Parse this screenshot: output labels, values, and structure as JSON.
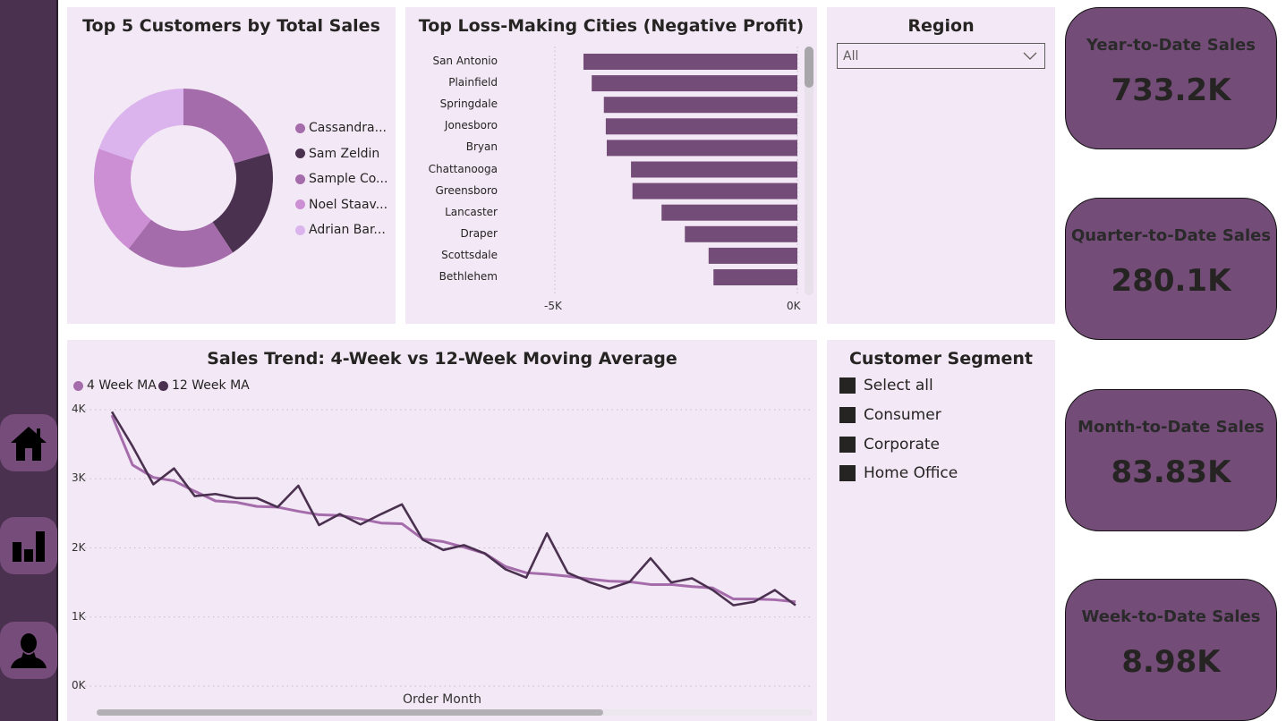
{
  "colors": {
    "sidebar": "#4b3150",
    "nav_button": "#764c7a",
    "panel_bg": "#f3e8f5",
    "kpi_bg": "#744c78",
    "bar": "#744c78",
    "line_4wk": "#a56cab",
    "line_12wk": "#4b3150"
  },
  "sidebar": {
    "items": [
      {
        "icon": "home-icon"
      },
      {
        "icon": "bar-chart-icon"
      },
      {
        "icon": "user-icon"
      }
    ]
  },
  "donut": {
    "title": "Top 5 Customers by Total Sales",
    "chart_data": {
      "type": "pie",
      "donut": true,
      "legend": "right",
      "categories": [
        "Cassandra...",
        "Sam Zeldin",
        "Sample Co...",
        "Noel Staav...",
        "Adrian Bar..."
      ],
      "values": [
        20.5,
        20.2,
        19.8,
        19.8,
        19.7
      ],
      "colors": [
        "#a56cab",
        "#4b3150",
        "#a56cab",
        "#cc8fd4",
        "#dbb4ee"
      ]
    }
  },
  "bars": {
    "title": "Top Loss-Making Cities (Negative Profit)",
    "chart_data": {
      "type": "bar",
      "orientation": "horizontal",
      "categories": [
        "San Antonio",
        "Plainfield",
        "Springdale",
        "Jonesboro",
        "Bryan",
        "Chattanooga",
        "Greensboro",
        "Lancaster",
        "Draper",
        "Scottsdale",
        "Bethlehem"
      ],
      "values": [
        -4410,
        -4240,
        -3990,
        -3950,
        -3930,
        -3430,
        -3400,
        -2800,
        -2320,
        -1830,
        -1730
      ],
      "xlim": [
        -5000,
        0
      ],
      "xticks": [
        "-5K",
        "0K"
      ],
      "xtick_values": [
        -5000,
        0
      ]
    }
  },
  "region": {
    "title": "Region",
    "selected": "All"
  },
  "trend": {
    "title": "Sales Trend: 4-Week vs 12-Week Moving Average",
    "chart_data": {
      "type": "line",
      "xlabel": "Order Month",
      "ylabel": "",
      "ylim": [
        0,
        4000
      ],
      "yticks": [
        "0K",
        "1K",
        "2K",
        "3K",
        "4K"
      ],
      "ytick_values": [
        0,
        1000,
        2000,
        3000,
        4000
      ],
      "grid": true,
      "legend": "top-left",
      "series": [
        {
          "name": "4 Week MA",
          "color": "#a56cab",
          "values": [
            3920,
            3200,
            3020,
            2970,
            2820,
            2680,
            2660,
            2600,
            2590,
            2530,
            2480,
            2470,
            2420,
            2360,
            2350,
            2130,
            2090,
            2010,
            1920,
            1730,
            1640,
            1620,
            1590,
            1550,
            1520,
            1510,
            1470,
            1470,
            1440,
            1420,
            1260,
            1260,
            1250,
            1220
          ]
        },
        {
          "name": "12 Week MA",
          "color": "#4b3150",
          "values": [
            3970,
            3470,
            2920,
            3150,
            2750,
            2780,
            2720,
            2720,
            2590,
            2900,
            2330,
            2490,
            2340,
            2490,
            2630,
            2120,
            1970,
            2040,
            1920,
            1690,
            1570,
            2210,
            1640,
            1510,
            1410,
            1510,
            1850,
            1500,
            1560,
            1390,
            1170,
            1220,
            1390,
            1170
          ]
        }
      ]
    }
  },
  "segment": {
    "title": "Customer Segment",
    "items": [
      "Select all",
      "Consumer",
      "Corporate",
      "Home Office"
    ]
  },
  "kpis": [
    {
      "title": "Year-to-Date Sales",
      "value": "733.2K"
    },
    {
      "title": "Quarter-to-Date Sales",
      "value": "280.1K"
    },
    {
      "title": "Month-to-Date Sales",
      "value": "83.83K"
    },
    {
      "title": "Week-to-Date Sales",
      "value": "8.98K"
    }
  ]
}
